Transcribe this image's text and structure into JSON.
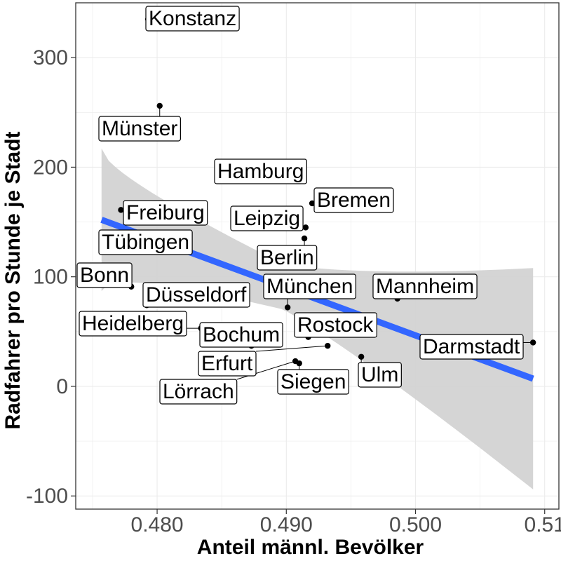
{
  "chart_data": {
    "type": "scatter",
    "xlabel": "Anteil männl. Bevölker",
    "ylabel": "Radfahrer pro Stunde je Stadt",
    "xlim": [
      0.4737,
      0.5111
    ],
    "ylim": [
      -112,
      350
    ],
    "x_ticks": [
      0.48,
      0.49,
      0.5,
      0.51
    ],
    "x_tick_labels": [
      "0.480",
      "0.490",
      "0.500",
      "0.51"
    ],
    "y_ticks": [
      -100,
      0,
      100,
      200,
      300
    ],
    "y_tick_labels": [
      "-100",
      "0",
      "100",
      "200",
      "300"
    ],
    "grid": true,
    "points": [
      {
        "label": "Konstanz",
        "x": 0.4793,
        "y": 335
      },
      {
        "label": "Münster",
        "x": 0.4802,
        "y": 256
      },
      {
        "label": "Hamburg",
        "x": 0.4895,
        "y": 188
      },
      {
        "label": "Bremen",
        "x": 0.492,
        "y": 167
      },
      {
        "label": "Freiburg",
        "x": 0.4772,
        "y": 161
      },
      {
        "label": "Leipzig",
        "x": 0.4915,
        "y": 145
      },
      {
        "label": "Berlin",
        "x": 0.4914,
        "y": 135
      },
      {
        "label": "Tübingen",
        "x": 0.4757,
        "y": 131
      },
      {
        "label": "Bonn",
        "x": 0.478,
        "y": 91
      },
      {
        "label": "Mannheim",
        "x": 0.4986,
        "y": 80
      },
      {
        "label": "Düsseldorf",
        "x": 0.4792,
        "y": 74
      },
      {
        "label": "München",
        "x": 0.4901,
        "y": 72
      },
      {
        "label": "Heidelberg",
        "x": 0.4834,
        "y": 53
      },
      {
        "label": "Rostock",
        "x": 0.4917,
        "y": 45
      },
      {
        "label": "Darmstadt",
        "x": 0.5091,
        "y": 40
      },
      {
        "label": "Bochum",
        "x": 0.4873,
        "y": 37
      },
      {
        "label": "Erfurt",
        "x": 0.4932,
        "y": 37
      },
      {
        "label": "Ulm",
        "x": 0.4958,
        "y": 27
      },
      {
        "label": "Lörrach",
        "x": 0.4907,
        "y": 23
      },
      {
        "label": "Siegen",
        "x": 0.491,
        "y": 21
      }
    ],
    "fit": {
      "method": "lm",
      "x": [
        0.4757,
        0.5091
      ],
      "y": [
        152,
        7
      ],
      "ci_lower": [
        87,
        -93
      ],
      "ci_upper": [
        217,
        108
      ]
    },
    "colors": {
      "points": "#000000",
      "fit_line": "#3366ff",
      "confidence_band": "#d3d3d3",
      "grid": "#ebebeb",
      "panel_border": "#333333",
      "tick_text": "#4d4d4d"
    }
  }
}
